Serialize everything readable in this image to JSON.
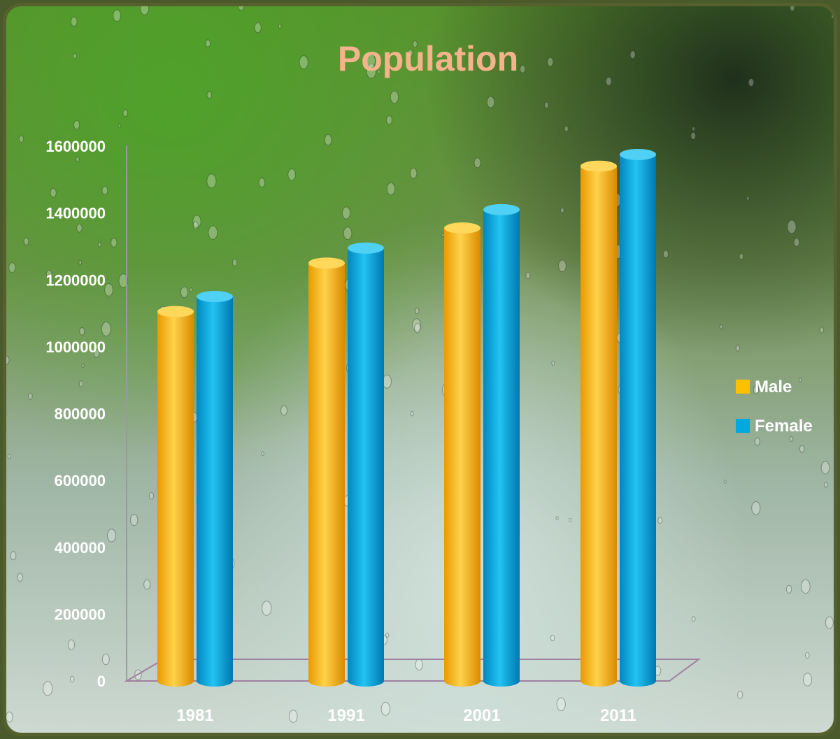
{
  "chart_data": {
    "type": "bar",
    "title": "Population",
    "categories": [
      "1981",
      "1991",
      "2001",
      "2011"
    ],
    "series": [
      {
        "name": "Male",
        "values": [
          1105000,
          1250000,
          1355000,
          1540000
        ],
        "color": "#ffc000"
      },
      {
        "name": "Female",
        "values": [
          1150000,
          1295000,
          1410000,
          1575000
        ],
        "color": "#00a8e0"
      }
    ],
    "yticks": [
      "0",
      "200000",
      "400000",
      "600000",
      "800000",
      "1000000",
      "1200000",
      "1400000",
      "1600000"
    ],
    "ylim": [
      0,
      1600000
    ],
    "legend": "right",
    "title_color": "#f4b38a"
  }
}
